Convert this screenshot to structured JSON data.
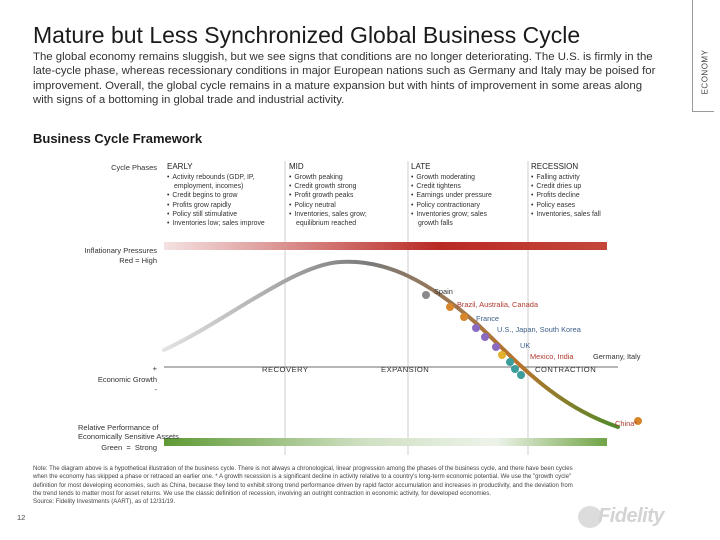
{
  "page": {
    "title": "Mature but Less Synchronized Global Business Cycle",
    "intro": "The global economy remains sluggish, but we see signs that conditions are no longer deteriorating. The U.S. is firmly in the late-cycle phase, whereas recessionary conditions in major European nations such as Germany and Italy may be poised for improvement. Overall, the global cycle remains in a mature expansion but with hints of improvement in some areas along with signs of a bottoming in global trade and industrial activity.",
    "side_label": "ECONOMY",
    "section_heading": "Business Cycle Framework",
    "page_number": "12",
    "logo_text": "Fidelity"
  },
  "diagram": {
    "row_labels": {
      "cycle_phases": "Cycle Phases",
      "inflationary_pressures": "Inflationary Pressures",
      "inflationary_key": "Red = High",
      "economic_growth": "Economic Growth",
      "growth_plus": "+",
      "growth_minus": "-",
      "relative_performance_1": "Relative Performance of",
      "relative_performance_2": "Economically Sensitive Assets",
      "relative_key_green": "Green",
      "relative_key_strong": "Strong"
    },
    "phases": [
      {
        "name": "EARLY",
        "items": [
          "Activity rebounds (GDP, IP,",
          "employment, incomes)",
          "Credit begins to grow",
          "Profits grow rapidly",
          "Policy still stimulative",
          "Inventories low; sales improve"
        ]
      },
      {
        "name": "MID",
        "items": [
          "Growth peaking",
          "Credit growth strong",
          "Profit growth peaks",
          "Policy neutral",
          "Inventories, sales grow;",
          "equilibrium reached"
        ]
      },
      {
        "name": "LATE",
        "items": [
          "Growth moderating",
          "Credit tightens",
          "Earnings under pressure",
          "Policy contractionary",
          "Inventories grow; sales",
          "growth falls"
        ]
      },
      {
        "name": "RECESSION",
        "items": [
          "Falling activity",
          "Credit dries up",
          "Profits decline",
          "Policy eases",
          "Inventories, sales fall"
        ]
      }
    ],
    "phase_words": {
      "recovery": "RECOVERY",
      "expansion": "EXPANSION",
      "contraction": "CONTRACTION"
    },
    "countries": [
      {
        "label": "Spain",
        "color": "#333333"
      },
      {
        "label": "Brazil, Australia, Canada",
        "color": "#b03a2e"
      },
      {
        "label": "France",
        "color": "#3d5f8a"
      },
      {
        "label": "U.S., Japan, South Korea",
        "color": "#3d5f8a"
      },
      {
        "label": "UK",
        "color": "#3d5f8a"
      },
      {
        "label": "Mexico, India",
        "color": "#b03a2e"
      },
      {
        "label": "Germany, Italy",
        "color": "#333333"
      },
      {
        "label": "China*",
        "color": "#b03a2e"
      }
    ],
    "colors": {
      "curve_start": "#e3e3e3",
      "curve_peak": "#7a7a7a",
      "curve_mid_down": "#b8732c",
      "curve_end": "#4e8a2a",
      "inflation_low": "#f4e2e2",
      "inflation_high": "#b92a25",
      "performance_strong": "#5f9a35",
      "performance_weak": "#eef3ea",
      "dot_orange": "#d8862b",
      "dot_yellow": "#e1b02e",
      "dot_purple": "#8b6ac1",
      "dot_teal": "#3c9d9a",
      "dot_gray": "#8a8a8a"
    }
  },
  "footnote": {
    "note": "Note: The diagram above is a hypothetical illustration of the business cycle. There is not always a chronological, linear progression among the phases of the business cycle, and there have been cycles when the economy has skipped a phase or retraced an earlier one. * A growth recession is a significant decline in activity relative to a country's long-term economic potential. We use the \"growth cycle\" definition for most developing economies, such as China, because they tend to exhibit strong trend performance driven by rapid factor accumulation and increases in productivity, and the deviation from the trend tends to matter most for asset returns. We use the classic definition of recession, involving an outright contraction in economic activity, for developed economies.",
    "source": "Source: Fidelity Investments (AART), as of 12/31/19."
  }
}
